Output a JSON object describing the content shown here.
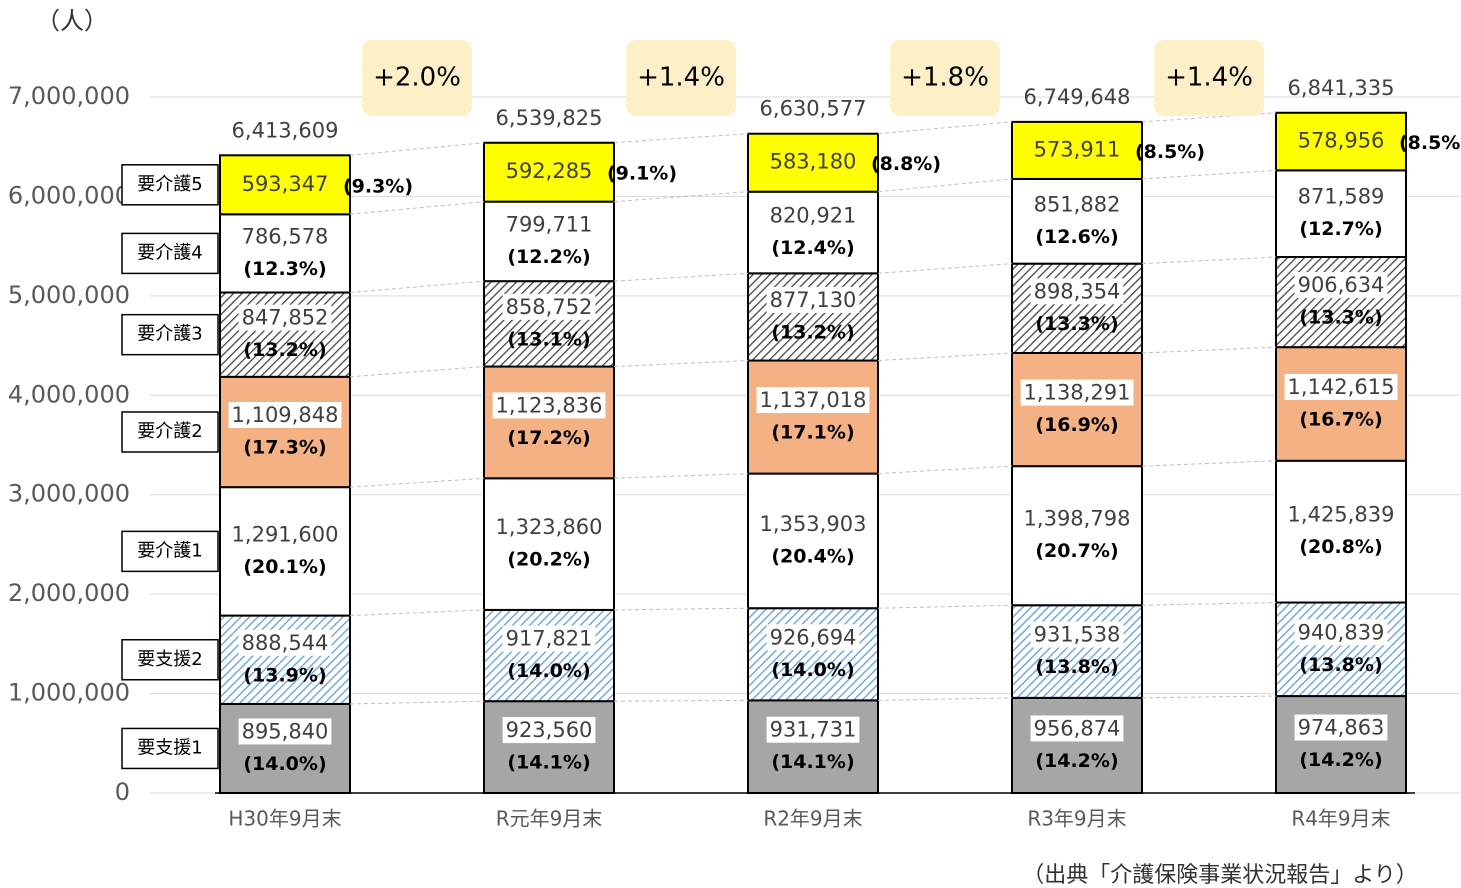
{
  "chart_data": {
    "type": "stacked_bar",
    "y_unit": "（人）",
    "source": "（出典「介護保険事業状況報告」より）",
    "categories": [
      "H30年9月末",
      "R元年9月末",
      "R2年9月末",
      "R3年9月末",
      "R4年9月末"
    ],
    "series": [
      {
        "name": "要支援1",
        "color": "#a6a6a6",
        "hatch": false,
        "values": [
          895840,
          923560,
          931731,
          956874,
          974863
        ],
        "value_labels": [
          "895,840",
          "923,560",
          "931,731",
          "956,874",
          "974,863"
        ],
        "share_labels": [
          "(14.0%)",
          "(14.1%)",
          "(14.1%)",
          "(14.2%)",
          "(14.2%)"
        ]
      },
      {
        "name": "要支援2",
        "color": "#5b9bd5",
        "hatch": true,
        "values": [
          888544,
          917821,
          926694,
          931538,
          940839
        ],
        "value_labels": [
          "888,544",
          "917,821",
          "926,694",
          "931,538",
          "940,839"
        ],
        "share_labels": [
          "(13.9%)",
          "(14.0%)",
          "(14.0%)",
          "(13.8%)",
          "(13.8%)"
        ]
      },
      {
        "name": "要介護1",
        "color": "#ffffff",
        "hatch": false,
        "values": [
          1291600,
          1323860,
          1353903,
          1398798,
          1425839
        ],
        "value_labels": [
          "1,291,600",
          "1,323,860",
          "1,353,903",
          "1,398,798",
          "1,425,839"
        ],
        "share_labels": [
          "(20.1%)",
          "(20.2%)",
          "(20.4%)",
          "(20.7%)",
          "(20.8%)"
        ]
      },
      {
        "name": "要介護2",
        "color": "#f4b183",
        "hatch": false,
        "values": [
          1109848,
          1123836,
          1137018,
          1138291,
          1142615
        ],
        "value_labels": [
          "1,109,848",
          "1,123,836",
          "1,137,018",
          "1,138,291",
          "1,142,615"
        ],
        "share_labels": [
          "(17.3%)",
          "(17.2%)",
          "(17.1%)",
          "(16.9%)",
          "(16.7%)"
        ]
      },
      {
        "name": "要介護3",
        "color": "#404040",
        "hatch": true,
        "values": [
          847852,
          858752,
          877130,
          898354,
          906634
        ],
        "value_labels": [
          "847,852",
          "858,752",
          "877,130",
          "898,354",
          "906,634"
        ],
        "share_labels": [
          "(13.2%)",
          "(13.1%)",
          "(13.2%)",
          "(13.3%)",
          "(13.3%)"
        ]
      },
      {
        "name": "要介護4",
        "color": "#ffffff",
        "hatch": false,
        "values": [
          786578,
          799711,
          820921,
          851882,
          871589
        ],
        "value_labels": [
          "786,578",
          "799,711",
          "820,921",
          "851,882",
          "871,589"
        ],
        "share_labels": [
          "(12.3%)",
          "(12.2%)",
          "(12.4%)",
          "(12.6%)",
          "(12.7%)"
        ]
      },
      {
        "name": "要介護5",
        "color": "#ffff00",
        "hatch": false,
        "values": [
          593347,
          592285,
          583180,
          573911,
          578956
        ],
        "value_labels": [
          "593,347",
          "592,285",
          "583,180",
          "573,911",
          "578,956"
        ],
        "share_labels": [
          "(9.3%)",
          "(9.1%)",
          "(8.8%)",
          "(8.5%)",
          "(8.5%)"
        ]
      }
    ],
    "totals": [
      6413609,
      6539825,
      6630577,
      6749648,
      6841335
    ],
    "total_labels": [
      "6,413,609",
      "6,539,825",
      "6,630,577",
      "6,749,648",
      "6,841,335"
    ],
    "growth_labels": [
      "+2.0%",
      "+1.4%",
      "+1.8%",
      "+1.4%"
    ],
    "ylim": [
      0,
      7000000
    ],
    "yticks": [
      0,
      {
        "value": 1000000,
        "label": "1,000,000"
      },
      {
        "value": 2000000,
        "label": "2,000,000"
      },
      {
        "value": 3000000,
        "label": "3,000,000"
      },
      {
        "value": 4000000,
        "label": "4,000,000"
      },
      {
        "value": 5000000,
        "label": "5,000,000"
      },
      {
        "value": 6000000,
        "label": "6,000,000"
      },
      {
        "value": 7000000,
        "label": "7,000,000"
      }
    ],
    "grid": true
  }
}
